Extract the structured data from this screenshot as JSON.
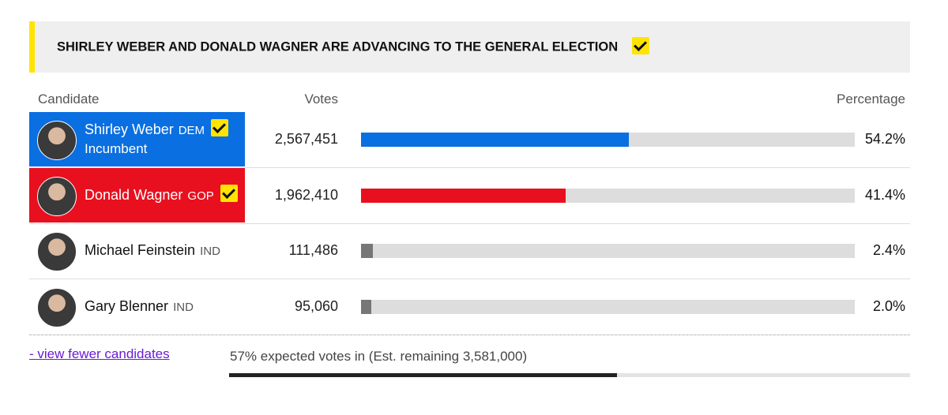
{
  "banner": {
    "title": "SHIRLEY WEBER AND DONALD WAGNER ARE ADVANCING TO THE GENERAL ELECTION",
    "checked": true
  },
  "table": {
    "headers": [
      "Candidate",
      "Votes",
      "Percentage"
    ],
    "rows": [
      {
        "name": "Shirley Weber",
        "party": "DEM",
        "note": "Incumbent",
        "votes": "2,567,451",
        "percentage": 54.2,
        "percentage_label": "54.2%",
        "winner": true,
        "color": "#0a6fe0"
      },
      {
        "name": "Donald Wagner",
        "party": "GOP",
        "votes": "1,962,410",
        "percentage": 41.4,
        "percentage_label": "41.4%",
        "winner": true,
        "color": "#e8101f"
      },
      {
        "name": "Michael Feinstein",
        "party": "IND",
        "votes": "111,486",
        "percentage": 2.4,
        "percentage_label": "2.4%",
        "winner": false,
        "color": "#777777"
      },
      {
        "name": "Gary Blenner",
        "party": "IND",
        "votes": "95,060",
        "percentage": 2.0,
        "percentage_label": "2.0%",
        "winner": false,
        "color": "#777777"
      }
    ]
  },
  "footer": {
    "link": "- view fewer candidates",
    "expected": "57% expected votes in (Est. remaining 3,581,000)",
    "expected_percent": 57
  }
}
